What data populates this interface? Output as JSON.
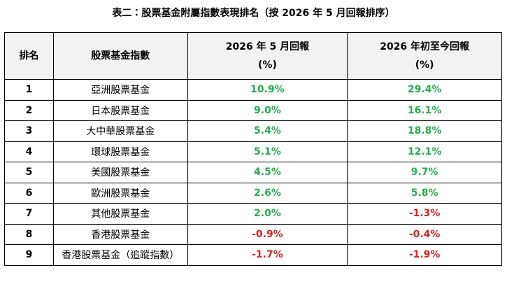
{
  "title": "表二：股票基金附屬指數表現排名（按 2026 年 5 月回報排序）",
  "table": {
    "headers": [
      [
        "排名"
      ],
      [
        "股票基金指數"
      ],
      [
        "2026 年 5 月回報",
        "(%)"
      ],
      [
        "2026 年初至今回報",
        "(%)"
      ]
    ],
    "rows": [
      [
        "1",
        "亞洲股票基金",
        "10.9%",
        "29.4%"
      ],
      [
        "2",
        "日本股票基金",
        "9.0%",
        "16.1%"
      ],
      [
        "3",
        "大中華股票基金",
        "5.4%",
        "18.8%"
      ],
      [
        "4",
        "環球股票基金",
        "5.1%",
        "12.1%"
      ],
      [
        "5",
        "美國股票基金",
        "4.5%",
        "9.7%"
      ],
      [
        "6",
        "歐洲股票基金",
        "2.6%",
        "5.8%"
      ],
      [
        "7",
        "其他股票基金",
        "2.0%",
        "-1.3%"
      ],
      [
        "8",
        "香港股票基金",
        "-0.9%",
        "-0.4%"
      ],
      [
        "9",
        "香港股票基金（追蹤指數）",
        "-1.7%",
        "-1.9%"
      ]
    ]
  }
}
